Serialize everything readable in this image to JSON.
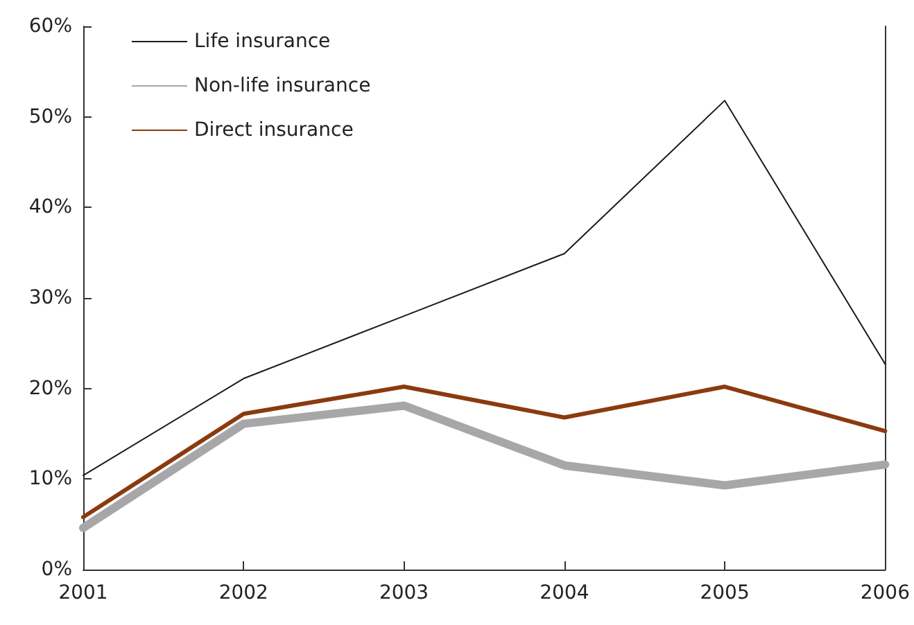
{
  "chart_data": {
    "type": "line",
    "categories": [
      "2001",
      "2002",
      "2003",
      "2004",
      "2005",
      "2006"
    ],
    "series": [
      {
        "name": "Life insurance",
        "color": "#1a1a1a",
        "values": [
          10.4,
          21.1,
          28.0,
          34.9,
          51.8,
          22.7
        ]
      },
      {
        "name": "Non-life insurance",
        "color": "#a7a7aa",
        "values": [
          4.6,
          16.1,
          18.1,
          11.5,
          9.3,
          11.6
        ]
      },
      {
        "name": "Direct insurance",
        "color": "#8b3a0f",
        "values": [
          5.8,
          17.2,
          20.2,
          16.8,
          20.2,
          15.3
        ]
      }
    ],
    "ylim": [
      0,
      60
    ],
    "yticks": [
      {
        "value": 0,
        "label": "0%"
      },
      {
        "value": 10,
        "label": "10%"
      },
      {
        "value": 20,
        "label": "20%"
      },
      {
        "value": 30,
        "label": "30%"
      },
      {
        "value": 40,
        "label": "40%"
      },
      {
        "value": 50,
        "label": "50%"
      },
      {
        "value": 60,
        "label": "60%"
      }
    ],
    "grid": false,
    "legend": "top left",
    "marker": "none",
    "line_style": "solid"
  }
}
